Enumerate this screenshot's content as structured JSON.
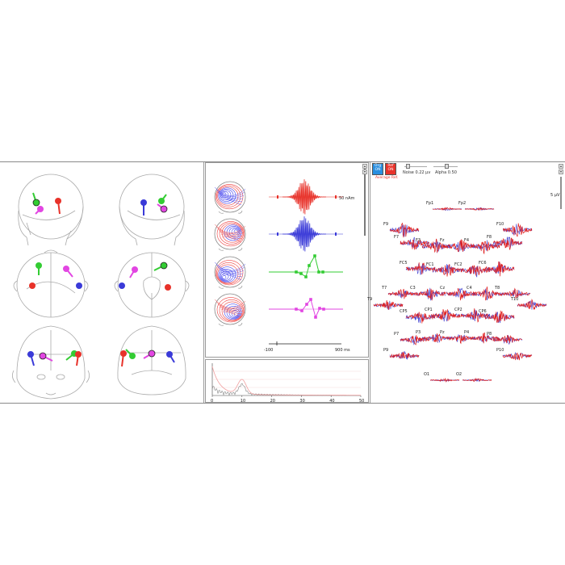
{
  "sources": [
    {
      "name": "green",
      "color": "#33cc33"
    },
    {
      "name": "red",
      "color": "#e8322a"
    },
    {
      "name": "blue",
      "color": "#3a3ad8"
    },
    {
      "name": "magenta",
      "color": "#e246e2"
    }
  ],
  "source_panel": {
    "scale_label": "50 nAm",
    "axis_start": "-100",
    "axis_end": "900 ms"
  },
  "spectrum": {
    "ticks": [
      "0",
      "10",
      "20",
      "30",
      "40",
      "50"
    ]
  },
  "eeg": {
    "org_label_1": "Org",
    "org_label_2": "ON",
    "ref_label_1": "Ref",
    "ref_label_2": "ON",
    "avg_ref": "Average Ref.",
    "noise_label": "Noise 0.22 µv",
    "alpha_label": "Alpha 0.50",
    "scale": "5 µV",
    "org_color": "#2a8fe0",
    "ref_color": "#e8322a",
    "channels": [
      "Fp1",
      "Fp2",
      "F9",
      "F10",
      "F7",
      "F3",
      "Fz",
      "F4",
      "F8",
      "FC5",
      "FC1",
      "FC2",
      "FC6",
      "T7",
      "C3",
      "Cz",
      "C4",
      "T8",
      "T9",
      "T10",
      "CP5",
      "CP1",
      "CP2",
      "CP6",
      "P7",
      "P3",
      "Pz",
      "P4",
      "P8",
      "P9",
      "P10",
      "O1",
      "O2"
    ]
  }
}
